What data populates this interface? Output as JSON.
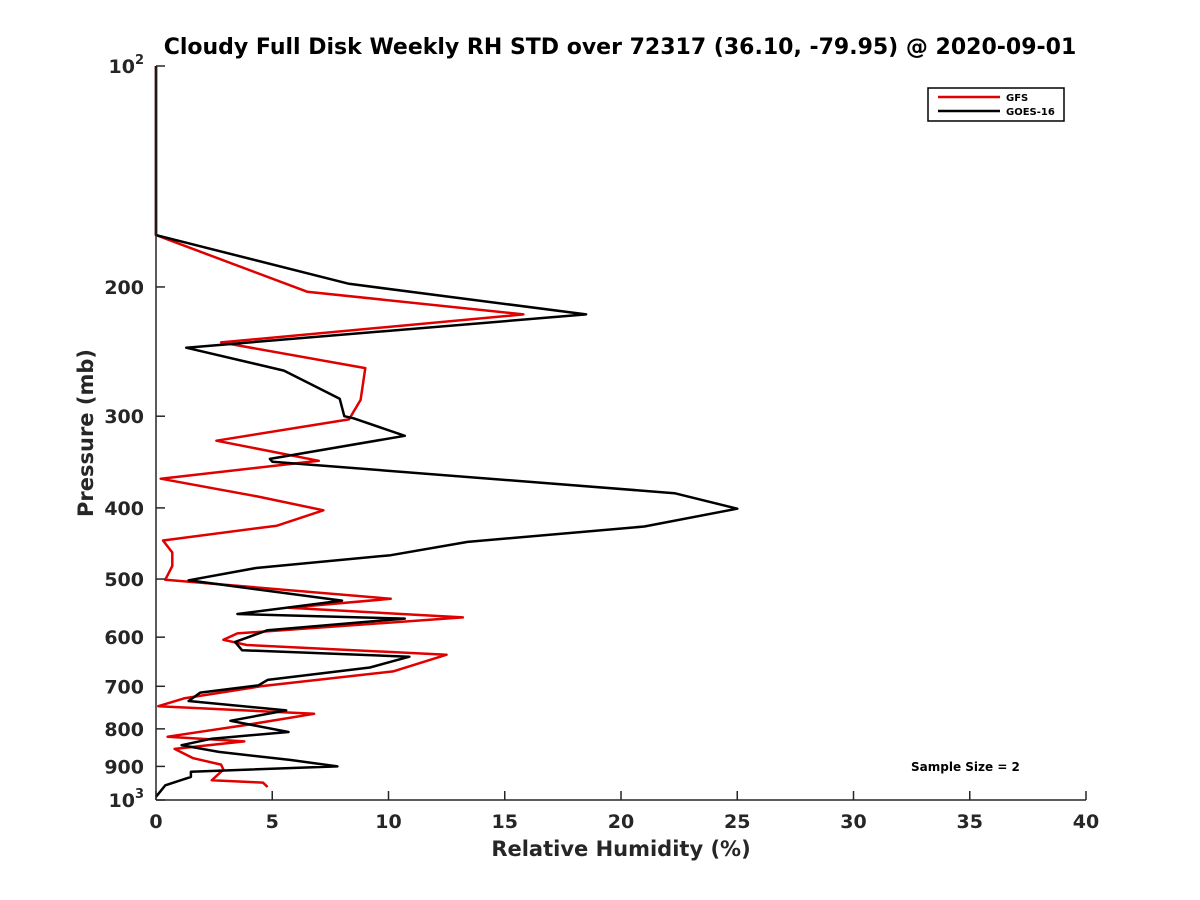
{
  "chart_data": {
    "type": "line",
    "title": "Cloudy Full Disk Weekly RH STD over 72317 (36.10, -79.95) @ 2020-09-01",
    "xlabel": "Relative Humidity (%)",
    "ylabel": "Pressure (mb)",
    "xlim": [
      0,
      40
    ],
    "ylim": [
      100,
      1000
    ],
    "yscale": "log",
    "y_reversed": true,
    "x_ticks": [
      "0",
      "5",
      "10",
      "15",
      "20",
      "25",
      "30",
      "35",
      "40"
    ],
    "y_ticks": [
      {
        "value": 100,
        "base": "10",
        "exp": "2"
      },
      {
        "value": 200,
        "label": "200"
      },
      {
        "value": 300,
        "label": "300"
      },
      {
        "value": 400,
        "label": "400"
      },
      {
        "value": 500,
        "label": "500"
      },
      {
        "value": 600,
        "label": "600"
      },
      {
        "value": 700,
        "label": "700"
      },
      {
        "value": 800,
        "label": "800"
      },
      {
        "value": 900,
        "label": "900"
      },
      {
        "value": 1000,
        "base": "10",
        "exp": "3"
      }
    ],
    "grid": false,
    "legend_position": "top-right",
    "annotation": "Sample Size = 2",
    "series": [
      {
        "name": "GFS",
        "color": "#e00000",
        "points": [
          [
            0,
            100
          ],
          [
            0,
            170
          ],
          [
            6.5,
            203
          ],
          [
            15.8,
            218
          ],
          [
            2.8,
            238
          ],
          [
            9.0,
            258
          ],
          [
            8.8,
            285
          ],
          [
            8.3,
            303
          ],
          [
            2.6,
            324
          ],
          [
            7.0,
            345
          ],
          [
            0.2,
            365
          ],
          [
            4.4,
            386
          ],
          [
            7.2,
            403
          ],
          [
            5.2,
            423
          ],
          [
            0.3,
            443
          ],
          [
            0.7,
            460
          ],
          [
            0.7,
            480
          ],
          [
            0.4,
            501
          ],
          [
            10.1,
            532
          ],
          [
            5.7,
            547
          ],
          [
            13.2,
            564
          ],
          [
            3.5,
            593
          ],
          [
            2.9,
            605
          ],
          [
            3.9,
            615
          ],
          [
            12.5,
            634
          ],
          [
            10.2,
            668
          ],
          [
            4.5,
            700
          ],
          [
            1.2,
            727
          ],
          [
            0.1,
            745
          ],
          [
            6.8,
            763
          ],
          [
            3.9,
            790
          ],
          [
            0.5,
            820
          ],
          [
            3.8,
            832
          ],
          [
            0.8,
            852
          ],
          [
            1.6,
            877
          ],
          [
            2.8,
            895
          ],
          [
            2.9,
            909
          ],
          [
            2.4,
            940
          ],
          [
            4.6,
            947
          ],
          [
            4.8,
            960
          ]
        ]
      },
      {
        "name": "GOES-16",
        "color": "#000000",
        "points": [
          [
            0,
            100
          ],
          [
            0,
            170
          ],
          [
            8.3,
            198
          ],
          [
            18.5,
            218
          ],
          [
            1.3,
            242
          ],
          [
            5.5,
            260
          ],
          [
            7.9,
            284
          ],
          [
            8.1,
            300
          ],
          [
            8.5,
            302
          ],
          [
            10.7,
            319
          ],
          [
            4.9,
            343
          ],
          [
            5.0,
            346
          ],
          [
            22.3,
            382
          ],
          [
            25.0,
            401
          ],
          [
            21.0,
            424
          ],
          [
            13.4,
            445
          ],
          [
            10.1,
            464
          ],
          [
            4.3,
            483
          ],
          [
            1.4,
            502
          ],
          [
            8.0,
            535
          ],
          [
            3.5,
            558
          ],
          [
            10.7,
            566
          ],
          [
            4.8,
            587
          ],
          [
            3.4,
            609
          ],
          [
            3.7,
            625
          ],
          [
            10.9,
            638
          ],
          [
            9.2,
            660
          ],
          [
            4.8,
            686
          ],
          [
            4.4,
            698
          ],
          [
            1.9,
            714
          ],
          [
            1.4,
            733
          ],
          [
            5.6,
            755
          ],
          [
            3.2,
            780
          ],
          [
            5.7,
            808
          ],
          [
            2.4,
            825
          ],
          [
            1.1,
            842
          ],
          [
            2.7,
            860
          ],
          [
            5.8,
            882
          ],
          [
            7.8,
            900
          ],
          [
            1.5,
            915
          ],
          [
            1.5,
            930
          ],
          [
            0.4,
            955
          ],
          [
            0,
            990
          ]
        ]
      }
    ]
  }
}
